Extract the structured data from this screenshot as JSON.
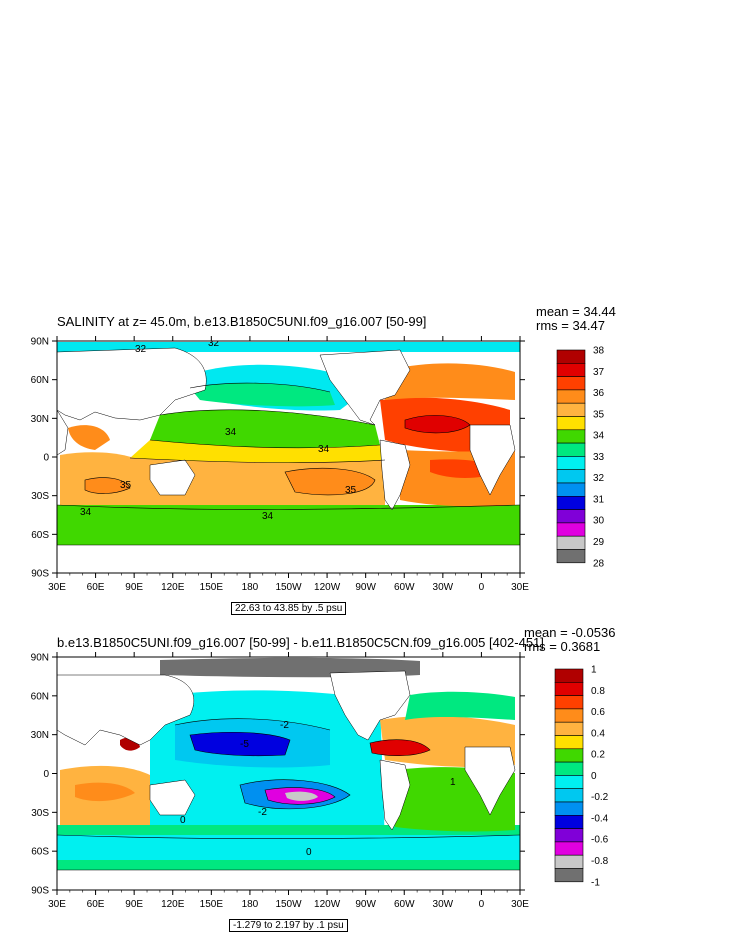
{
  "top": {
    "title": "SALINITY at z=  45.0m, b.e13.B1850C5UNI.f09_g16.007 [50-99]",
    "mean": "mean = 34.44",
    "rms": "rms = 34.47",
    "range": "22.63 to 43.85 by .5 psu",
    "lat_ticks": [
      "90N",
      "60N",
      "30N",
      "0",
      "30S",
      "60S",
      "90S"
    ],
    "lon_ticks": [
      "30E",
      "60E",
      "90E",
      "120E",
      "150E",
      "180",
      "150W",
      "120W",
      "90W",
      "60W",
      "30W",
      "0",
      "30E"
    ],
    "contour_labels": [
      "34",
      "34",
      "35",
      "35",
      "34",
      "34",
      "32",
      "32"
    ],
    "colorbar": {
      "labels": [
        "38",
        "37",
        "36",
        "35",
        "34",
        "33",
        "32",
        "31",
        "30",
        "29",
        "28"
      ],
      "colors": [
        "#b00000",
        "#e00000",
        "#ff4000",
        "#ff8c1a",
        "#ffb340",
        "#ffe000",
        "#40d800",
        "#00e880",
        "#00f0f0",
        "#00c8f0",
        "#0090f0",
        "#0000e0",
        "#8000d8",
        "#e000e0",
        "#c8c8c8",
        "#707070"
      ]
    }
  },
  "bottom": {
    "title": "b.e13.B1850C5UNI.f09_g16.007 [50-99] - b.e11.B1850C5CN.f09_g16.005 [402-451]",
    "mean": "mean = -0.0536",
    "rms": "rms = 0.3681",
    "range": "-1.279 to 2.197 by .1 psu",
    "lat_ticks": [
      "90N",
      "60N",
      "30N",
      "0",
      "30S",
      "60S",
      "90S"
    ],
    "lon_ticks": [
      "30E",
      "60E",
      "90E",
      "120E",
      "150E",
      "180",
      "150W",
      "120W",
      "90W",
      "60W",
      "30W",
      "0",
      "30E"
    ],
    "contour_labels": [
      "-5",
      "-2",
      "-2",
      "0",
      "0",
      "1"
    ],
    "colorbar": {
      "labels": [
        "1",
        "0.8",
        "0.6",
        "0.4",
        "0.2",
        "0",
        "-0.2",
        "-0.4",
        "-0.6",
        "-0.8",
        "-1"
      ],
      "colors": [
        "#b00000",
        "#e00000",
        "#ff4000",
        "#ff8c1a",
        "#ffb340",
        "#ffe000",
        "#40d800",
        "#00e880",
        "#00f0f0",
        "#00c8f0",
        "#0090f0",
        "#0000e0",
        "#8000d8",
        "#e000e0",
        "#c8c8c8",
        "#707070"
      ]
    }
  }
}
